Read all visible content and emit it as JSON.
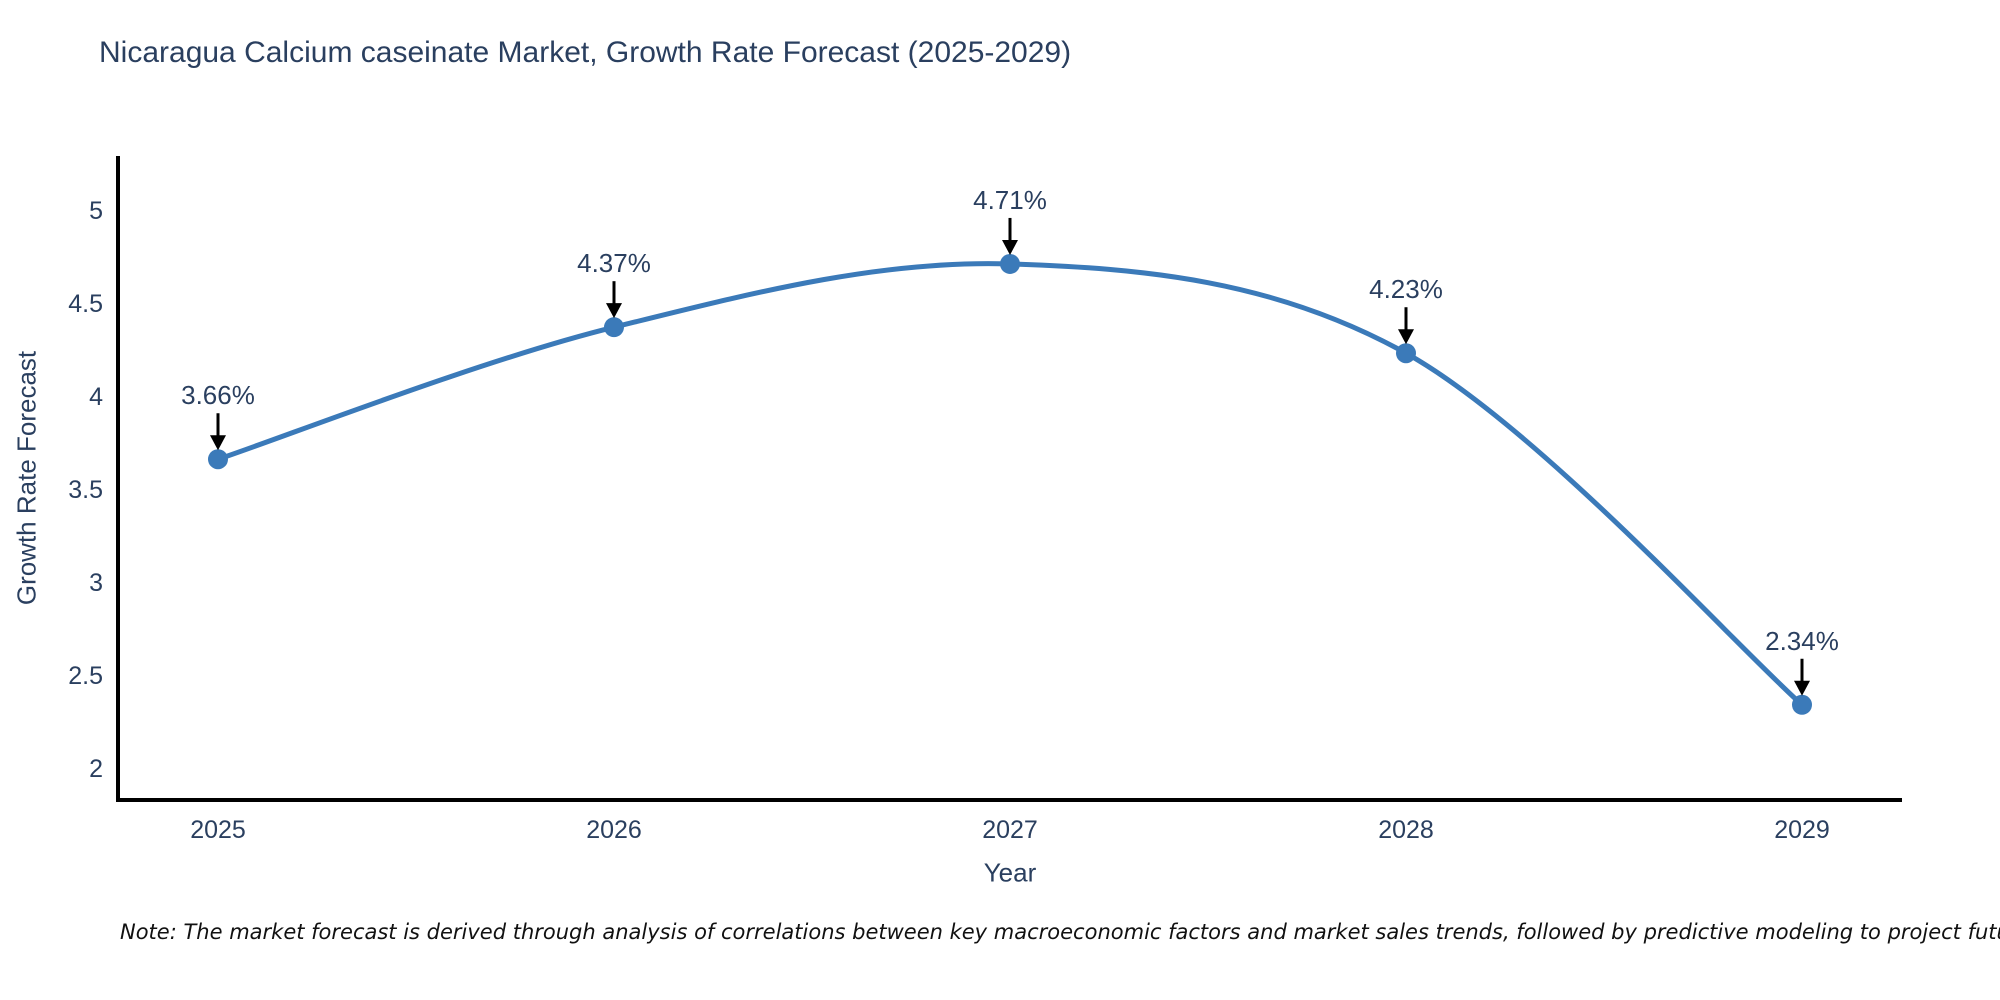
{
  "note": {
    "text": "Note: The market forecast is derived through analysis of correlations between key macroeconomic factors and market sales trends, followed by predictive modeling to project future sales"
  },
  "chart_data": {
    "type": "line",
    "title": "Nicaragua Calcium caseinate Market, Growth Rate Forecast (2025-2029)",
    "xlabel": "Year",
    "ylabel": "Growth Rate Forecast",
    "categories": [
      "2025",
      "2026",
      "2027",
      "2028",
      "2029"
    ],
    "values": [
      3.66,
      4.37,
      4.71,
      4.23,
      2.34
    ],
    "point_labels": [
      "3.66%",
      "4.37%",
      "4.71%",
      "4.23%",
      "2.34%"
    ],
    "ylim": [
      2,
      5
    ],
    "yticks": [
      5,
      4.5,
      4,
      3.5,
      3,
      2.5,
      2
    ],
    "line_shape": "spline",
    "grid": false,
    "legend": "none",
    "colors": {
      "line": "#3b7ab9",
      "marker": "#3b7ab9",
      "arrow": "#000000",
      "axis": "#000000",
      "tick_label": "#2a3f5f",
      "title": "#2a3f5f",
      "annotation_text": "#2a3f5f"
    }
  }
}
